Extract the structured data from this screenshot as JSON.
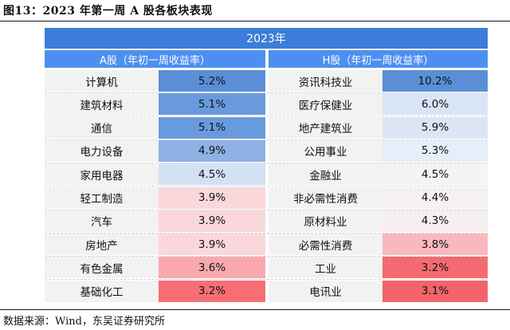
{
  "figure_title": "图13：2023 年第一周 A 股各板块表现",
  "table": {
    "banner": "2023年",
    "a_header": "A股（年初一周收益率）",
    "h_header": "H股（年初一周收益率）",
    "rows": [
      {
        "a_name": "计算机",
        "a_value": "5.2%",
        "a_color": "#5a8fd8",
        "h_name": "资讯科技业",
        "h_value": "10.2%",
        "h_color": "#5a8fd8"
      },
      {
        "a_name": "建筑材料",
        "a_value": "5.1%",
        "a_color": "#6a9ade",
        "h_name": "医疗保健业",
        "h_value": "6.0%",
        "h_color": "#d9e5f6"
      },
      {
        "a_name": "通信",
        "a_value": "5.1%",
        "a_color": "#6a9ade",
        "h_name": "地产建筑业",
        "h_value": "5.9%",
        "h_color": "#dae6f6"
      },
      {
        "a_name": "电力设备",
        "a_value": "4.9%",
        "a_color": "#8eb1e6",
        "h_name": "公用事业",
        "h_value": "5.3%",
        "h_color": "#e6eef9"
      },
      {
        "a_name": "家用电器",
        "a_value": "4.5%",
        "a_color": "#d3e1f5",
        "h_name": "金融业",
        "h_value": "4.5%",
        "h_color": "#f5f3f4"
      },
      {
        "a_name": "轻工制造",
        "a_value": "3.9%",
        "a_color": "#fad7da",
        "h_name": "非必需性消费",
        "h_value": "4.4%",
        "h_color": "#f5f1f2"
      },
      {
        "a_name": "汽车",
        "a_value": "3.9%",
        "a_color": "#fad7da",
        "h_name": "原材料业",
        "h_value": "4.3%",
        "h_color": "#f6eff0"
      },
      {
        "a_name": "房地产",
        "a_value": "3.9%",
        "a_color": "#fad7da",
        "h_name": "必需性消费",
        "h_value": "3.8%",
        "h_color": "#f9b8bd"
      },
      {
        "a_name": "有色金属",
        "a_value": "3.6%",
        "a_color": "#f9a9ae",
        "h_name": "工业",
        "h_value": "3.2%",
        "h_color": "#f56a70"
      },
      {
        "a_name": "基础化工",
        "a_value": "3.2%",
        "a_color": "#f76f75",
        "h_name": "电讯业",
        "h_value": "3.1%",
        "h_color": "#f4636a"
      }
    ]
  },
  "source_note": "数据来源：Wind，东吴证券研究所"
}
